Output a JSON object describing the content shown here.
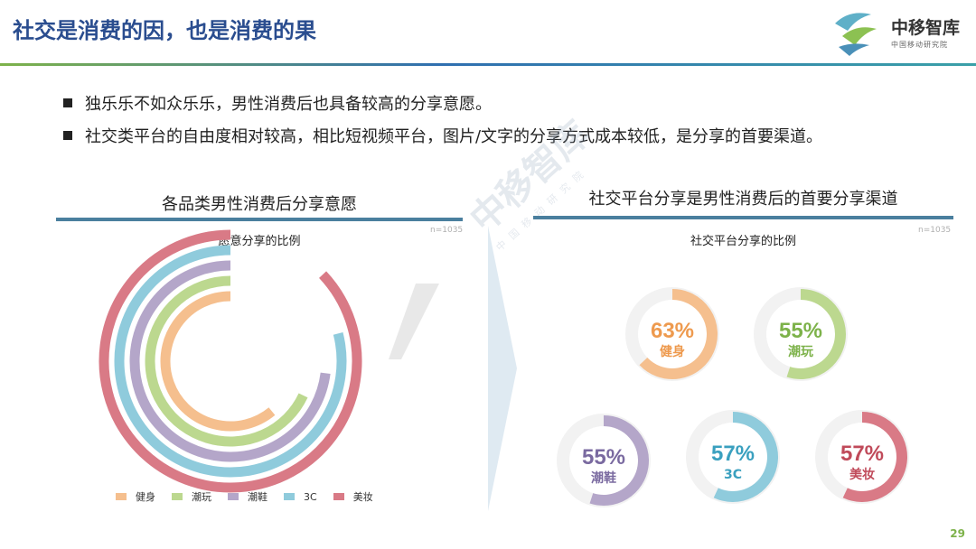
{
  "header": {
    "title": "社交是消费的因，也是消费的果",
    "logo_name": "中移智库",
    "logo_sub": "中国移动研究院",
    "accent_green": "#7db24a",
    "accent_blue": "#2a4d8f"
  },
  "bullets": [
    "独乐乐不如众乐乐，男性消费后也具备较高的分享意愿。",
    "社交类平台的自由度相对较高，相比短视频平台，图片/文字的分享方式成本较低，是分享的首要渠道。"
  ],
  "left_panel": {
    "title": "各品类男性消费后分享意愿",
    "subtitle": "愿意分享的比例",
    "note": "n=1035"
  },
  "right_panel": {
    "title": "社交平台分享是男性消费后的首要分享渠道",
    "subtitle": "社交平台分享的比例",
    "note": "n=1035"
  },
  "watermark": {
    "main": "中移智库",
    "sub": "中国移动研究院"
  },
  "page_number": "29",
  "chart_data": [
    {
      "type": "radial-bar",
      "title": "愿意分享的比例",
      "categories": [
        "健身",
        "潮玩",
        "潮鞋",
        "3C",
        "美妆"
      ],
      "values": [
        0.61,
        0.68,
        0.73,
        0.79,
        0.87
      ],
      "colors": [
        "#f5bf8e",
        "#bcd88f",
        "#b4a6c9",
        "#8fcbdc",
        "#d97a86"
      ],
      "legend_position": "bottom"
    },
    {
      "type": "donut",
      "title": "社交平台分享的比例",
      "items": [
        {
          "label": "健身",
          "value": 63,
          "text": "63%",
          "color": "#f5bf8e",
          "text_color": "#ee9a4e"
        },
        {
          "label": "潮玩",
          "value": 55,
          "text": "55%",
          "color": "#bcd88f",
          "text_color": "#7db24a"
        },
        {
          "label": "潮鞋",
          "value": 55,
          "text": "55%",
          "color": "#b4a6c9",
          "text_color": "#7a6aa0"
        },
        {
          "label": "3C",
          "value": 57,
          "text": "57%",
          "color": "#8fcbdc",
          "text_color": "#3aa0bf"
        },
        {
          "label": "美妆",
          "value": 57,
          "text": "57%",
          "color": "#d97a86",
          "text_color": "#c04a5a"
        }
      ]
    }
  ]
}
